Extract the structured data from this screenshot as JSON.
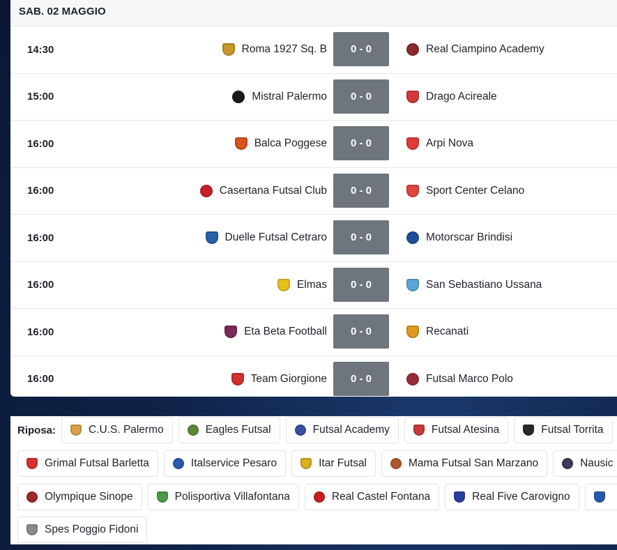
{
  "date_header": "SAB. 02 MAGGIO",
  "matches": [
    {
      "time": "14:30",
      "home": "Roma 1927 Sq. B",
      "score": "0 - 0",
      "away": "Real Ciampino Academy",
      "home_color": "#c8962a",
      "away_color": "#8a2a2a"
    },
    {
      "time": "15:00",
      "home": "Mistral Palermo",
      "score": "0 - 0",
      "away": "Drago Acireale",
      "home_color": "#1a1a1a",
      "away_color": "#d23a3a"
    },
    {
      "time": "16:00",
      "home": "Balca Poggese",
      "score": "0 - 0",
      "away": "Arpi Nova",
      "home_color": "#d9531e",
      "away_color": "#e23b3b"
    },
    {
      "time": "16:00",
      "home": "Casertana Futsal Club",
      "score": "0 - 0",
      "away": "Sport Center Celano",
      "home_color": "#c8202a",
      "away_color": "#e0443c"
    },
    {
      "time": "16:00",
      "home": "Duelle Futsal Cetraro",
      "score": "0 - 0",
      "away": "Motorscar Brindisi",
      "home_color": "#2b5fa8",
      "away_color": "#1f4f99"
    },
    {
      "time": "16:00",
      "home": "Elmas",
      "score": "0 - 0",
      "away": "San Sebastiano Ussana",
      "home_color": "#e6c21a",
      "away_color": "#5aa7d8"
    },
    {
      "time": "16:00",
      "home": "Eta Beta Football",
      "score": "0 - 0",
      "away": "Recanati",
      "home_color": "#7a2a5a",
      "away_color": "#e09a20"
    },
    {
      "time": "16:00",
      "home": "Team Giorgione",
      "score": "0 - 0",
      "away": "Futsal Marco Polo",
      "home_color": "#d23030",
      "away_color": "#9a2a3a"
    }
  ],
  "rest": {
    "label": "Riposa:",
    "rows": [
      [
        {
          "name": "C.U.S. Palermo",
          "color": "#d9a04a"
        },
        {
          "name": "Eagles Futsal",
          "color": "#5a8a3a"
        },
        {
          "name": "Futsal Academy",
          "color": "#3a4fa0"
        },
        {
          "name": "Futsal Atesina",
          "color": "#c83a3a"
        },
        {
          "name": "Futsal Torrita",
          "color": "#2a2a2a"
        }
      ],
      [
        {
          "name": "Grimal Futsal Barletta",
          "color": "#d83030"
        },
        {
          "name": "Italservice Pesaro",
          "color": "#2a5ab0"
        },
        {
          "name": "Itar Futsal",
          "color": "#d8b020"
        },
        {
          "name": "Mama Futsal San Marzano",
          "color": "#b05a2a"
        },
        {
          "name": "Nausic",
          "color": "#3a3a5a"
        }
      ],
      [
        {
          "name": "Olympique Sinope",
          "color": "#a02a2a"
        },
        {
          "name": "Polisportiva Villafontana",
          "color": "#4a9a4a"
        },
        {
          "name": "Real Castel Fontana",
          "color": "#c81e1e"
        },
        {
          "name": "Real Five Carovigno",
          "color": "#2a3fa0"
        },
        {
          "name": "",
          "color": "#2a5ab0"
        }
      ],
      [
        {
          "name": "Spes Poggio Fidoni",
          "color": "#8a8a8a"
        }
      ]
    ]
  }
}
